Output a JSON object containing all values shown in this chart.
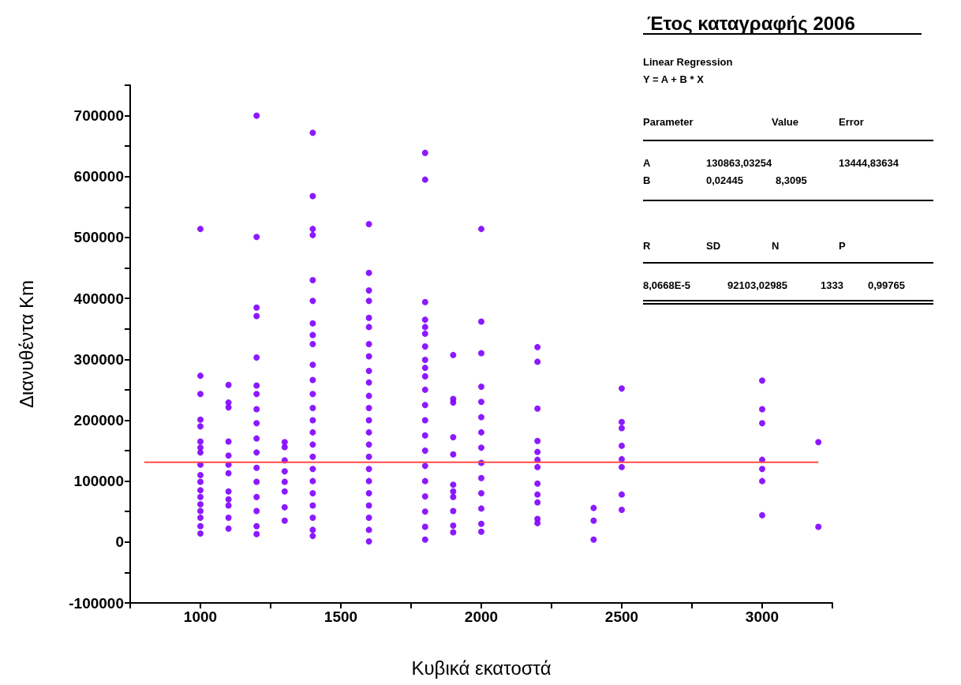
{
  "chart_data": {
    "type": "scatter",
    "title": "Έτος καταγραφής 2006",
    "xlabel": "Κυβικά εκατοστά",
    "ylabel": "Διανυθέντα Km",
    "xlim": [
      750,
      3250
    ],
    "ylim": [
      -100000,
      750000
    ],
    "xticks": [
      {
        "value": 750,
        "label": null
      },
      1000,
      {
        "value": 1250,
        "label": null
      },
      1500,
      {
        "value": 1750,
        "label": null
      },
      2000,
      {
        "value": 2250,
        "label": null
      },
      2500,
      {
        "value": 2750,
        "label": null
      },
      3000,
      {
        "value": 3250,
        "label": null
      }
    ],
    "yticks": [
      -100000,
      {
        "value": -50000,
        "label": null
      },
      0,
      {
        "value": 50000,
        "label": null
      },
      100000,
      {
        "value": 150000,
        "label": null
      },
      200000,
      {
        "value": 250000,
        "label": null
      },
      300000,
      {
        "value": 350000,
        "label": null
      },
      400000,
      {
        "value": 450000,
        "label": null
      },
      500000,
      {
        "value": 550000,
        "label": null
      },
      600000,
      {
        "value": 650000,
        "label": null
      },
      700000,
      {
        "value": 750000,
        "label": null
      }
    ],
    "marker": "circle",
    "annotations": [
      "Linear Regression",
      "Y = A + B * X",
      "Parameter",
      "Value",
      "Error",
      "A",
      "130863,03254",
      "13444,83634",
      "B",
      "0,02445",
      "8,3095",
      "R",
      "SD",
      "N",
      "P",
      "8,0668E-5",
      "92103,02985",
      "1333",
      "0,99765"
    ],
    "series": [
      {
        "color": "#8000ff",
        "x": [
          1000,
          1000,
          1000,
          1000,
          1000,
          1000,
          1000,
          1000,
          1000,
          1000,
          1000,
          1000,
          1000,
          1000,
          1000,
          1000,
          1000,
          1000,
          1100,
          1100,
          1100,
          1100,
          1100,
          1100,
          1100,
          1100,
          1100,
          1100,
          1100,
          1100,
          1200,
          1200,
          1200,
          1200,
          1200,
          1200,
          1200,
          1200,
          1200,
          1200,
          1200,
          1200,
          1200,
          1200,
          1200,
          1200,
          1200,
          1300,
          1300,
          1300,
          1300,
          1300,
          1300,
          1300,
          1300,
          1400,
          1400,
          1400,
          1400,
          1400,
          1400,
          1400,
          1400,
          1400,
          1400,
          1400,
          1400,
          1400,
          1400,
          1400,
          1400,
          1400,
          1400,
          1400,
          1400,
          1400,
          1400,
          1400,
          1400,
          1600,
          1600,
          1600,
          1600,
          1600,
          1600,
          1600,
          1600,
          1600,
          1600,
          1600,
          1600,
          1600,
          1600,
          1600,
          1600,
          1600,
          1600,
          1600,
          1600,
          1600,
          1600,
          1600,
          1800,
          1800,
          1800,
          1800,
          1800,
          1800,
          1800,
          1800,
          1800,
          1800,
          1800,
          1800,
          1800,
          1800,
          1800,
          1800,
          1800,
          1800,
          1800,
          1800,
          1800,
          1900,
          1900,
          1900,
          1900,
          1900,
          1900,
          1900,
          1900,
          1900,
          1900,
          1900,
          2000,
          2000,
          2000,
          2000,
          2000,
          2000,
          2000,
          2000,
          2000,
          2000,
          2000,
          2000,
          2000,
          2000,
          2200,
          2200,
          2200,
          2200,
          2200,
          2200,
          2200,
          2200,
          2200,
          2200,
          2200,
          2200,
          2400,
          2400,
          2400,
          2500,
          2500,
          2500,
          2500,
          2500,
          2500,
          2500,
          2500,
          3000,
          3000,
          3000,
          3000,
          3000,
          3000,
          3000,
          3200,
          3200
        ],
        "values": [
          514000,
          273000,
          243000,
          201000,
          190000,
          165000,
          155000,
          147000,
          127000,
          110000,
          99000,
          85000,
          74000,
          62000,
          51000,
          40000,
          26000,
          14000,
          258000,
          229000,
          221000,
          165000,
          142000,
          127000,
          113000,
          83000,
          70000,
          60000,
          40000,
          22000,
          700000,
          501000,
          385000,
          371000,
          303000,
          257000,
          243000,
          218000,
          195000,
          170000,
          147000,
          122000,
          99000,
          74000,
          51000,
          26000,
          13000,
          164000,
          156000,
          134000,
          116000,
          99000,
          83000,
          57000,
          35000,
          672000,
          568000,
          514000,
          504000,
          430000,
          396000,
          359000,
          340000,
          325000,
          291000,
          266000,
          243000,
          220000,
          200000,
          180000,
          160000,
          140000,
          120000,
          100000,
          80000,
          60000,
          40000,
          20000,
          10000,
          522000,
          442000,
          413000,
          396000,
          368000,
          353000,
          325000,
          305000,
          281000,
          262000,
          240000,
          220000,
          200000,
          180000,
          160000,
          140000,
          120000,
          100000,
          80000,
          60000,
          40000,
          20000,
          1000,
          639000,
          595000,
          394000,
          365000,
          353000,
          342000,
          321000,
          299000,
          286000,
          272000,
          250000,
          225000,
          200000,
          175000,
          150000,
          125000,
          100000,
          75000,
          50000,
          25000,
          4000,
          307000,
          235000,
          229000,
          172000,
          144000,
          94000,
          83000,
          74000,
          51000,
          27000,
          16000,
          514000,
          362000,
          310000,
          255000,
          230000,
          205000,
          180000,
          155000,
          130000,
          105000,
          80000,
          55000,
          30000,
          17000,
          320000,
          296000,
          219000,
          166000,
          148000,
          135000,
          123000,
          96000,
          78000,
          65000,
          38000,
          31000,
          56000,
          35000,
          4000,
          252000,
          197000,
          187000,
          158000,
          136000,
          123000,
          78000,
          53000,
          265000,
          218000,
          195000,
          135000,
          120000,
          100000,
          44000,
          164000,
          25000
        ]
      },
      {
        "type": "line",
        "color": "#ff4a4a",
        "marker": "none",
        "x": [
          800,
          3200
        ],
        "values": [
          131000,
          131000
        ]
      }
    ]
  }
}
